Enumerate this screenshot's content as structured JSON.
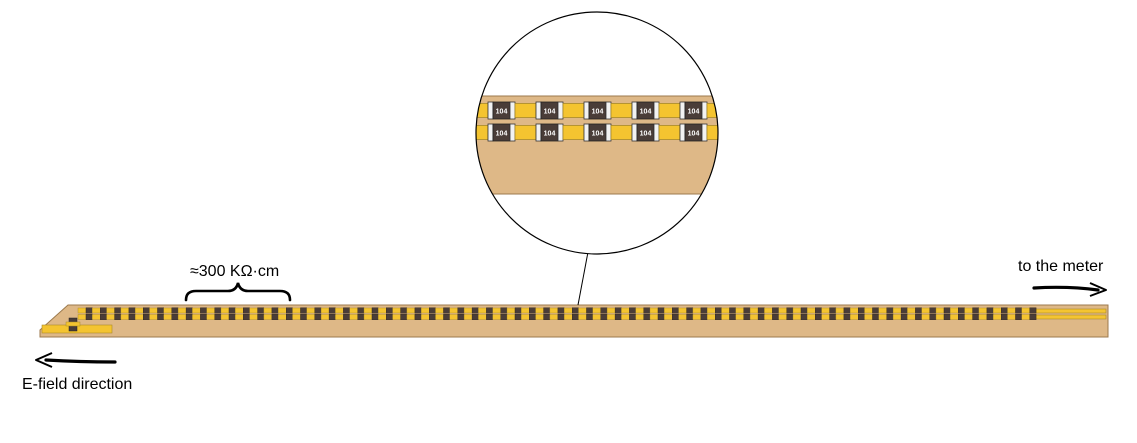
{
  "labels": {
    "resistance": "≈300 KΩ·cm",
    "meter": "to the meter",
    "efield": "E-field direction"
  },
  "resistor_code": "104",
  "colors": {
    "board": "#deb887",
    "board_edge": "#9c7a4e",
    "pad": "#f4c430",
    "pad_edge": "#a88a2a",
    "resistor": "#4a3d38",
    "resistor_cap": "#f2f2f2",
    "stroke": "#000000"
  },
  "icons": [
    "brace-icon",
    "arrow-right-icon",
    "arrow-left-icon",
    "magnifier-icon"
  ]
}
